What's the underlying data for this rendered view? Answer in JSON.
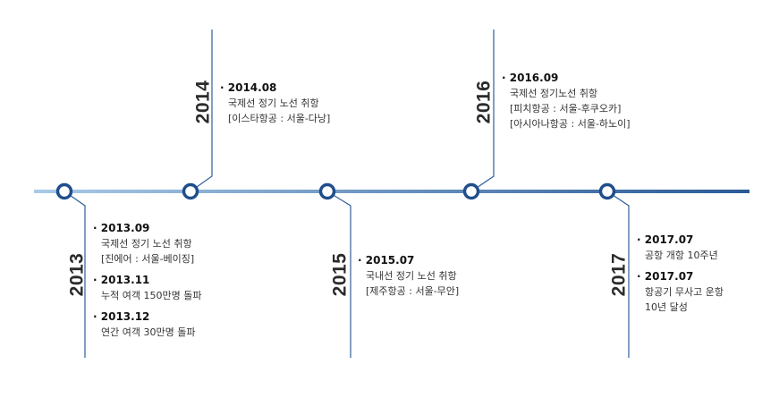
{
  "colors": {
    "line_light": "#9cc2e5",
    "line_dark": "#2f5f9a",
    "connector": "#2f5f9a",
    "node_stroke": "#1f4e8c",
    "node_fill": "#ffffff"
  },
  "milestones": [
    {
      "year": "2013",
      "entries": [
        {
          "date": "2013.09",
          "lines": [
            "국제선 정기 노선 취항",
            "[진에어 : 서울-베이징]"
          ]
        },
        {
          "date": "2013.11",
          "lines": [
            "누적 여객 150만명 돌파"
          ]
        },
        {
          "date": "2013.12",
          "lines": [
            "연간 여객 30만명 돌파"
          ]
        }
      ]
    },
    {
      "year": "2014",
      "entries": [
        {
          "date": "2014.08",
          "lines": [
            "국제선 정기 노선 취항",
            "[이스타항공 : 서울-다낭]"
          ]
        }
      ]
    },
    {
      "year": "2015",
      "entries": [
        {
          "date": "2015.07",
          "lines": [
            "국내선 정기 노선 취항",
            "[제주항공 : 서울-무안]"
          ]
        }
      ]
    },
    {
      "year": "2016",
      "entries": [
        {
          "date": "2016.09",
          "lines": [
            "국제선 정기노선 취항",
            "[피치항공 : 서울-후쿠오카]",
            "[아시아나항공 : 서울-하노이]"
          ]
        }
      ]
    },
    {
      "year": "2017",
      "entries": [
        {
          "date": "2017.07",
          "lines": [
            "공항 개항 10주년"
          ]
        },
        {
          "date": "2017.07",
          "lines": [
            "항공기 무사고 운항",
            "10년 달성"
          ]
        }
      ]
    }
  ]
}
